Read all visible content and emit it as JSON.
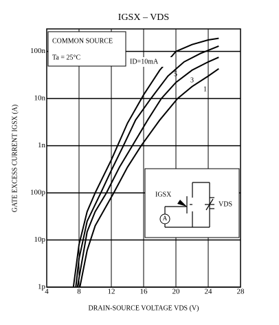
{
  "chart_data": {
    "type": "line",
    "log_y": true,
    "grid": true,
    "title": "IGSX – VDS",
    "x_label": "DRAIN-SOURCE VOLTAGE  VDS  (V)",
    "y_label": "GATE EXCESS CURRENT  IGSX  (A)",
    "annotations": [
      "COMMON SOURCE",
      "Ta = 25°C"
    ],
    "inset_labels": [
      "IGSX",
      "VDS",
      "A"
    ],
    "xlim": [
      4,
      28
    ],
    "xticks": [
      4,
      8,
      12,
      16,
      20,
      24,
      28
    ],
    "ylim": [
      1e-12,
      3e-07
    ],
    "yticks": [
      {
        "value": 1e-12,
        "label": "1p"
      },
      {
        "value": 1e-11,
        "label": "10p"
      },
      {
        "value": 1e-10,
        "label": "100p"
      },
      {
        "value": 1e-09,
        "label": "1n"
      },
      {
        "value": 1e-08,
        "label": "10n"
      },
      {
        "value": 1e-07,
        "label": "100n"
      }
    ],
    "series": [
      {
        "name": "ID=10mA",
        "color": "#000000",
        "x": [
          7.3,
          8,
          9,
          10,
          12,
          14,
          16,
          18,
          20,
          22,
          24,
          25.3
        ],
        "values": [
          1e-12,
          8e-12,
          4e-11,
          1e-10,
          5e-10,
          3e-09,
          1.2e-08,
          4e-08,
          1e-07,
          1.4e-07,
          1.75e-07,
          1.9e-07
        ]
      },
      {
        "name": "5",
        "color": "#000000",
        "x": [
          7.6,
          8,
          9,
          10.7,
          12,
          13.5,
          15,
          16.9,
          19,
          21,
          23,
          25.3
        ],
        "values": [
          1e-12,
          4e-12,
          2.5e-11,
          1e-10,
          3e-10,
          1e-09,
          3.5e-09,
          1e-08,
          3e-08,
          6e-08,
          9e-08,
          1.3e-07
        ]
      },
      {
        "name": "3",
        "color": "#000000",
        "x": [
          7.8,
          9,
          10,
          11.4,
          13,
          14.6,
          16.5,
          18.2,
          20,
          22,
          24,
          25.3
        ],
        "values": [
          1e-12,
          1.5e-11,
          4e-11,
          1e-10,
          3.5e-10,
          1e-09,
          3.5e-09,
          1e-08,
          2.2e-08,
          4e-08,
          6e-08,
          7.5e-08
        ]
      },
      {
        "name": "1",
        "color": "#000000",
        "x": [
          8.1,
          9,
          10,
          12.3,
          14,
          15.7,
          18,
          20.2,
          22,
          24,
          25.3
        ],
        "values": [
          1e-12,
          6e-12,
          2e-11,
          1e-10,
          3.5e-10,
          1e-09,
          3.5e-09,
          1e-08,
          1.8e-08,
          3e-08,
          4.3e-08
        ]
      }
    ]
  }
}
